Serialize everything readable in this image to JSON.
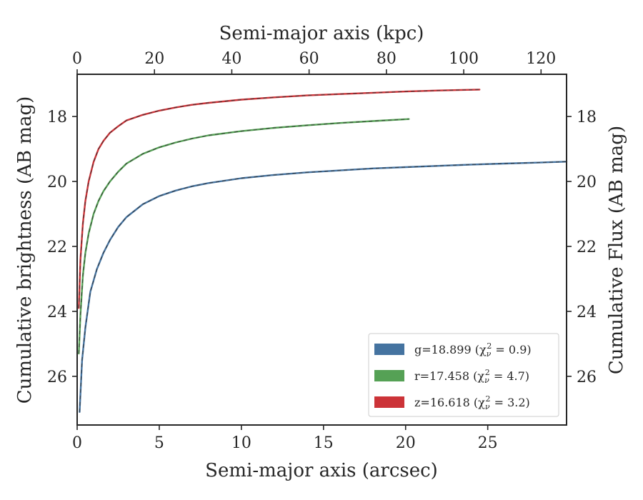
{
  "chart_data": {
    "type": "line",
    "xlabel_bottom": "Semi-major axis (arcsec)",
    "xlabel_top": "Semi-major axis (kpc)",
    "ylabel_left": "Cumulative brightness (AB mag)",
    "ylabel_right": "Cumulative Flux (AB mag)",
    "xlim": [
      0,
      29.8
    ],
    "ylim_inverted": [
      27.5,
      16.7
    ],
    "top_xlim": [
      0,
      126.6
    ],
    "x_ticks": [
      "0",
      "5",
      "10",
      "15",
      "20",
      "25"
    ],
    "y_ticks": [
      "18",
      "20",
      "22",
      "24",
      "26"
    ],
    "top_x_ticks": [
      "0",
      "20",
      "40",
      "60",
      "80",
      "100",
      "120"
    ],
    "y_tick_values": [
      18,
      20,
      22,
      24,
      26
    ],
    "x_tick_values": [
      0,
      5,
      10,
      15,
      20,
      25
    ],
    "top_x_tick_values": [
      0,
      20,
      40,
      60,
      80,
      100,
      120
    ],
    "grid": false,
    "legend_position": "bottom-right",
    "series": [
      {
        "name": "g=18.899",
        "legend_chi": "(χ",
        "legend_chi_sub": "ν",
        "legend_chi_sup": "2",
        "legend_chi_val": " = 0.9)",
        "color": "#4573a0",
        "x": [
          0.15,
          0.3,
          0.5,
          0.8,
          1.2,
          1.6,
          2.0,
          2.5,
          3.0,
          4.0,
          5.0,
          6.0,
          7.0,
          8.0,
          10.0,
          12.0,
          14.0,
          16.0,
          18.0,
          20.0,
          22.0,
          24.0,
          26.0,
          28.0,
          29.8
        ],
        "y": [
          27.1,
          25.5,
          24.5,
          23.4,
          22.7,
          22.2,
          21.8,
          21.4,
          21.1,
          20.7,
          20.45,
          20.28,
          20.15,
          20.05,
          19.9,
          19.8,
          19.72,
          19.66,
          19.6,
          19.56,
          19.52,
          19.48,
          19.45,
          19.42,
          19.39
        ]
      },
      {
        "name": "r=17.458",
        "legend_chi": "(χ",
        "legend_chi_sub": "ν",
        "legend_chi_sup": "2",
        "legend_chi_val": " = 4.7)",
        "color": "#55a155",
        "x": [
          0.1,
          0.2,
          0.35,
          0.5,
          0.7,
          1.0,
          1.3,
          1.6,
          2.0,
          2.5,
          3.0,
          4.0,
          5.0,
          6.0,
          7.0,
          8.0,
          10.0,
          12.0,
          14.0,
          16.0,
          18.0,
          20.2
        ],
        "y": [
          25.3,
          24.1,
          22.9,
          22.2,
          21.6,
          21.0,
          20.6,
          20.3,
          20.0,
          19.7,
          19.45,
          19.15,
          18.95,
          18.8,
          18.68,
          18.58,
          18.45,
          18.35,
          18.27,
          18.2,
          18.14,
          18.08
        ]
      },
      {
        "name": "z=16.618",
        "legend_chi": "(χ",
        "legend_chi_sub": "ν",
        "legend_chi_sup": "2",
        "legend_chi_val": " = 3.2)",
        "color": "#cc3338",
        "x": [
          0.1,
          0.2,
          0.35,
          0.5,
          0.7,
          1.0,
          1.3,
          1.6,
          2.0,
          2.5,
          3.0,
          4.0,
          5.0,
          6.0,
          7.0,
          8.0,
          10.0,
          12.0,
          14.0,
          16.0,
          18.0,
          20.0,
          22.0,
          24.5
        ],
        "y": [
          23.9,
          22.4,
          21.3,
          20.6,
          20.0,
          19.4,
          19.0,
          18.75,
          18.5,
          18.3,
          18.12,
          17.95,
          17.82,
          17.72,
          17.64,
          17.58,
          17.48,
          17.41,
          17.35,
          17.31,
          17.27,
          17.23,
          17.2,
          17.17
        ]
      }
    ]
  }
}
